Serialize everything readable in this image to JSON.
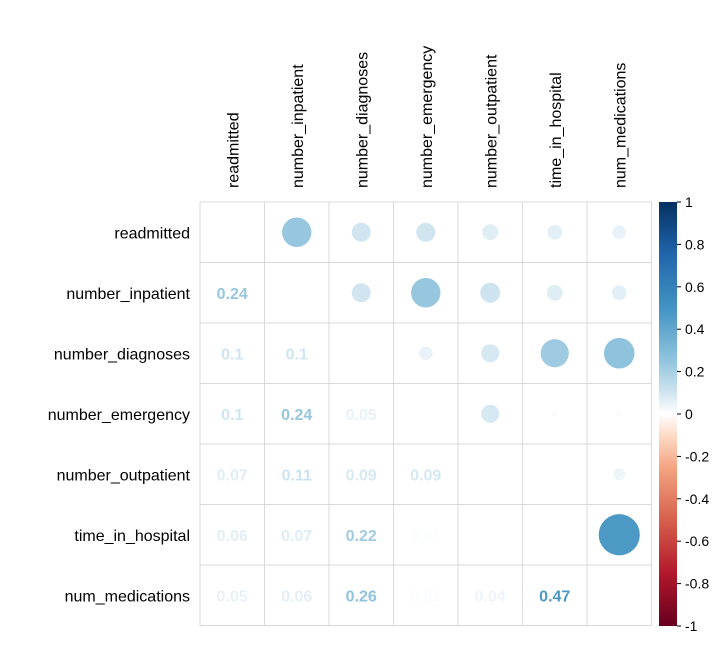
{
  "chart_data": {
    "type": "heatmap",
    "subtype": "correlation-matrix-mixed",
    "upper_method": "circle",
    "lower_method": "number",
    "variables": [
      "readmitted",
      "number_inpatient",
      "number_diagnoses",
      "number_emergency",
      "number_outpatient",
      "time_in_hospital",
      "num_medications"
    ],
    "matrix": [
      [
        1,
        0.24,
        0.1,
        0.1,
        0.07,
        0.06,
        0.05
      ],
      [
        0.24,
        1,
        0.1,
        0.24,
        0.11,
        0.07,
        0.06
      ],
      [
        0.1,
        0.1,
        1,
        0.05,
        0.09,
        0.22,
        0.26
      ],
      [
        0.1,
        0.24,
        0.05,
        1,
        0.09,
        0.01,
        0.01
      ],
      [
        0.07,
        0.11,
        0.09,
        0.09,
        1,
        0.0,
        0.04
      ],
      [
        0.06,
        0.07,
        0.22,
        0.01,
        0.0,
        1,
        0.47
      ],
      [
        0.05,
        0.06,
        0.26,
        0.01,
        0.04,
        0.47,
        1
      ]
    ],
    "lower_labels": [
      [
        null,
        null,
        null,
        null,
        null,
        null,
        null
      ],
      [
        "0.24",
        null,
        null,
        null,
        null,
        null,
        null
      ],
      [
        "0.1",
        "0.1",
        null,
        null,
        null,
        null,
        null
      ],
      [
        "0.1",
        "0.24",
        "0.05",
        null,
        null,
        null,
        null
      ],
      [
        "0.07",
        "0.11",
        "0.09",
        "0.09",
        null,
        null,
        null
      ],
      [
        "0.06",
        "0.07",
        "0.22",
        "0.01",
        "",
        null,
        null
      ],
      [
        "0.05",
        "0.06",
        "0.26",
        "0.01",
        "0.04",
        "0.47",
        null
      ]
    ],
    "diagonal": "blank",
    "colorbar": {
      "ticks": [
        "1",
        "0.8",
        "0.6",
        "0.4",
        "0.2",
        "0",
        "-0.2",
        "-0.4",
        "-0.6",
        "-0.8",
        "-1"
      ],
      "range": [
        -1,
        1
      ],
      "stops": [
        {
          "v": -1,
          "color": "#67001f"
        },
        {
          "v": -0.75,
          "color": "#b2182b"
        },
        {
          "v": -0.5,
          "color": "#d6604d"
        },
        {
          "v": -0.25,
          "color": "#f4a582"
        },
        {
          "v": -0.1,
          "color": "#fddbc7"
        },
        {
          "v": 0,
          "color": "#ffffff"
        },
        {
          "v": 0.1,
          "color": "#d1e5f0"
        },
        {
          "v": 0.25,
          "color": "#92c5de"
        },
        {
          "v": 0.5,
          "color": "#4393c3"
        },
        {
          "v": 0.75,
          "color": "#2166ac"
        },
        {
          "v": 1,
          "color": "#053061"
        }
      ]
    },
    "grid": true,
    "grid_color": "#d9d9d9"
  }
}
